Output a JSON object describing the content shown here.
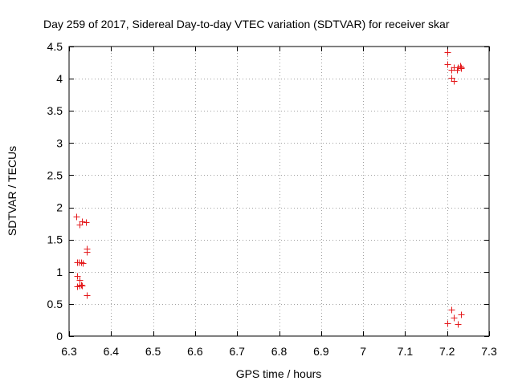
{
  "chart_data": {
    "type": "scatter",
    "title": "Day 259 of 2017, Sidereal Day-to-day VTEC variation (SDTVAR) for receiver skar",
    "xlabel": "GPS time / hours",
    "ylabel": "SDTVAR / TECUs",
    "xlim": [
      6.3,
      7.3
    ],
    "ylim": [
      0,
      4.5
    ],
    "xticks": [
      6.3,
      6.4,
      6.5,
      6.6,
      6.7,
      6.8,
      6.9,
      7.0,
      7.1,
      7.2,
      7.3
    ],
    "xtick_labels": [
      "6.3",
      "6.4",
      "6.5",
      "6.6",
      "6.7",
      "6.8",
      "6.9",
      "7",
      "7.1",
      "7.2",
      "7.3"
    ],
    "yticks": [
      0,
      0.5,
      1,
      1.5,
      2,
      2.5,
      3,
      3.5,
      4,
      4.5
    ],
    "ytick_labels": [
      "0",
      "0.5",
      "1",
      "1.5",
      "2",
      "2.5",
      "3",
      "3.5",
      "4",
      "4.5"
    ],
    "grid": true,
    "marker": "+",
    "marker_color": "#e41a1c",
    "series": [
      {
        "name": "SDTVAR",
        "x": [
          6.318,
          6.324,
          6.331,
          6.34,
          6.343,
          6.343,
          6.319,
          6.322,
          6.329,
          6.332,
          6.319,
          6.324,
          6.328,
          6.32,
          6.325,
          6.331,
          6.343,
          7.2,
          7.2,
          7.211,
          7.215,
          7.226,
          7.231,
          7.233,
          7.21,
          7.216,
          7.224,
          7.233,
          7.21,
          7.216,
          7.2,
          7.226,
          7.234
        ],
        "y": [
          1.86,
          1.73,
          1.78,
          1.77,
          1.36,
          1.31,
          1.15,
          1.15,
          1.15,
          1.13,
          0.94,
          0.87,
          0.8,
          0.77,
          0.78,
          0.79,
          0.64,
          4.41,
          4.23,
          4.14,
          4.18,
          4.17,
          4.2,
          4.18,
          4.01,
          3.96,
          4.14,
          4.16,
          0.41,
          0.29,
          0.2,
          0.19,
          0.34
        ]
      }
    ]
  }
}
